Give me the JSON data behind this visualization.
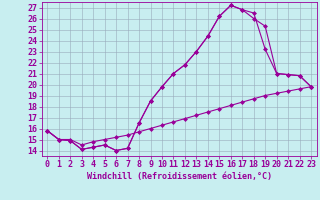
{
  "xlabel": "Windchill (Refroidissement éolien,°C)",
  "ylabel": "",
  "xlim": [
    -0.5,
    23.5
  ],
  "ylim": [
    13.5,
    27.5
  ],
  "xticks": [
    0,
    1,
    2,
    3,
    4,
    5,
    6,
    7,
    8,
    9,
    10,
    11,
    12,
    13,
    14,
    15,
    16,
    17,
    18,
    19,
    20,
    21,
    22,
    23
  ],
  "yticks": [
    14,
    15,
    16,
    17,
    18,
    19,
    20,
    21,
    22,
    23,
    24,
    25,
    26,
    27
  ],
  "bg_color": "#c8eef0",
  "line_color": "#990099",
  "grid_color": "#99aabb",
  "line1_x": [
    0,
    1,
    2,
    3,
    4,
    5,
    6,
    7,
    8,
    9,
    10,
    11,
    12,
    13,
    14,
    15,
    16,
    17,
    18,
    19,
    20,
    21,
    22,
    23
  ],
  "line1_y": [
    15.8,
    15.0,
    14.9,
    14.1,
    14.3,
    14.5,
    14.0,
    14.2,
    16.5,
    18.5,
    19.8,
    21.0,
    21.8,
    23.0,
    24.4,
    26.2,
    27.2,
    26.8,
    26.0,
    25.3,
    21.0,
    20.9,
    20.8,
    19.8
  ],
  "line2_x": [
    0,
    1,
    2,
    3,
    4,
    5,
    6,
    7,
    8,
    9,
    10,
    11,
    12,
    13,
    14,
    15,
    16,
    17,
    18,
    19,
    20,
    21,
    22,
    23
  ],
  "line2_y": [
    15.8,
    15.0,
    14.9,
    14.1,
    14.3,
    14.5,
    14.0,
    14.2,
    16.5,
    18.5,
    19.8,
    21.0,
    21.8,
    23.0,
    24.4,
    26.2,
    27.2,
    26.8,
    26.5,
    23.2,
    21.0,
    20.9,
    20.8,
    19.8
  ],
  "line3_x": [
    0,
    1,
    2,
    3,
    4,
    5,
    6,
    7,
    8,
    9,
    10,
    11,
    12,
    13,
    14,
    15,
    16,
    17,
    18,
    19,
    20,
    21,
    22,
    23
  ],
  "line3_y": [
    15.8,
    15.0,
    15.0,
    14.5,
    14.8,
    15.0,
    15.2,
    15.4,
    15.7,
    16.0,
    16.3,
    16.6,
    16.9,
    17.2,
    17.5,
    17.8,
    18.1,
    18.4,
    18.7,
    19.0,
    19.2,
    19.4,
    19.6,
    19.8
  ],
  "font_size": 6,
  "marker": "D",
  "marker_size": 2.5
}
